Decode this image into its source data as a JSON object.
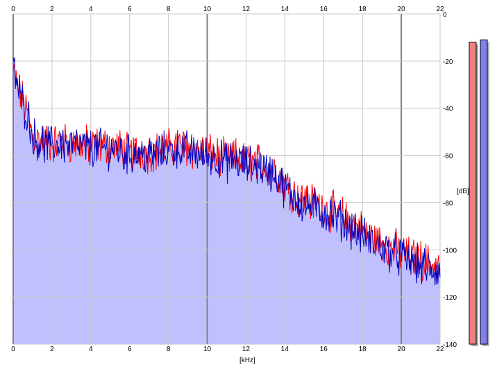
{
  "chart_data": {
    "type": "area",
    "title": "",
    "xlabel": "[kHz]",
    "ylabel": "[dB]",
    "xlim": [
      0,
      22
    ],
    "ylim": [
      -140,
      0
    ],
    "x_ticks": [
      "0",
      "2",
      "4",
      "6",
      "8",
      "10",
      "12",
      "14",
      "16",
      "18",
      "20",
      "22"
    ],
    "y_ticks": [
      "0",
      "-20",
      "-40",
      "-60",
      "-80",
      "-100",
      "-120",
      "-140"
    ],
    "y_tick_values": [
      0,
      -20,
      -40,
      -60,
      -80,
      -100,
      -120,
      -140
    ],
    "grid": true,
    "legend": "none",
    "series": [
      {
        "color": "#ff0000",
        "x": [
          0,
          0.2,
          0.5,
          0.8,
          1,
          1.5,
          2,
          2.5,
          3,
          3.5,
          4,
          4.5,
          5,
          5.5,
          6,
          6.5,
          7,
          7.5,
          8,
          8.5,
          9,
          9.5,
          10,
          10.5,
          11,
          11.5,
          12,
          12.5,
          13,
          13.5,
          14,
          14.5,
          15,
          15.5,
          16,
          16.5,
          17,
          17.5,
          18,
          18.5,
          19,
          19.5,
          20,
          20.5,
          21,
          21.5,
          22
        ],
        "values": [
          -25,
          -30,
          -37,
          -44,
          -52,
          -54,
          -55,
          -54,
          -55,
          -55,
          -56,
          -56,
          -56,
          -57,
          -59,
          -58,
          -59,
          -58,
          -57,
          -56,
          -57,
          -58,
          -59,
          -60,
          -62,
          -61,
          -63,
          -63,
          -64,
          -66,
          -72,
          -76,
          -79,
          -80,
          -82,
          -84,
          -86,
          -89,
          -92,
          -95,
          -97,
          -99,
          -101,
          -103,
          -104,
          -106,
          -107
        ]
      },
      {
        "color": "#0000c0",
        "x": [
          0,
          0.2,
          0.5,
          0.8,
          1,
          1.5,
          2,
          2.5,
          3,
          3.5,
          4,
          4.5,
          5,
          5.5,
          6,
          6.5,
          7,
          7.5,
          8,
          8.5,
          9,
          9.5,
          10,
          10.5,
          11,
          11.5,
          12,
          12.5,
          13,
          13.5,
          14,
          14.5,
          15,
          15.5,
          16,
          16.5,
          17,
          17.5,
          18,
          18.5,
          19,
          19.5,
          20,
          20.5,
          21,
          21.5,
          22
        ],
        "values": [
          -23,
          -30,
          -38,
          -44,
          -52,
          -55,
          -56,
          -55,
          -56,
          -56,
          -57,
          -57,
          -57,
          -58,
          -60,
          -59,
          -60,
          -59,
          -58,
          -57,
          -58,
          -59,
          -60,
          -61,
          -63,
          -62,
          -64,
          -64,
          -66,
          -68,
          -74,
          -78,
          -81,
          -82,
          -84,
          -86,
          -88,
          -91,
          -94,
          -97,
          -99,
          -101,
          -103,
          -105,
          -107,
          -108,
          -110
        ]
      }
    ],
    "level_meters": [
      {
        "color": "#f08080",
        "value_db": -12
      },
      {
        "color": "#8080f0",
        "value_db": -11
      }
    ],
    "fill_color": "#c0c0ff"
  }
}
